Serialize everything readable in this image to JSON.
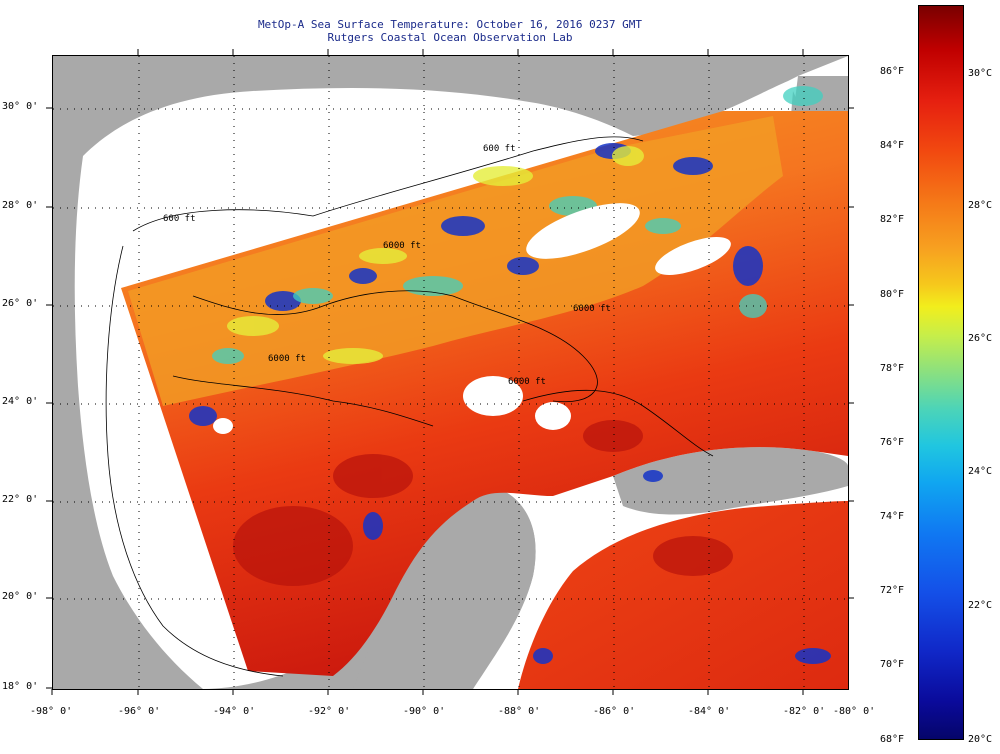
{
  "title_line1": "MetOp-A Sea Surface Temperature:  October 16, 2016 0237 GMT",
  "title_line2": "Rutgers Coastal Ocean Observation Lab",
  "lon_labels": [
    "-98° 0'",
    "-96° 0'",
    "-94° 0'",
    "-92° 0'",
    "-90° 0'",
    "-88° 0'",
    "-86° 0'",
    "-84° 0'",
    "-82° 0'",
    "-80° 0'"
  ],
  "lat_labels": [
    "30° 0'",
    "28° 0'",
    "26° 0'",
    "24° 0'",
    "22° 0'",
    "20° 0'",
    "18° 0'"
  ],
  "contour_labels": [
    "600 ft",
    "600 ft",
    "6000 ft",
    "6000 ft",
    "6000 ft",
    "6000 ft"
  ],
  "colorbar": {
    "f_labels": [
      "86°F",
      "84°F",
      "82°F",
      "80°F",
      "78°F",
      "76°F",
      "74°F",
      "72°F",
      "70°F",
      "68°F"
    ],
    "c_labels": [
      "30°C",
      "28°C",
      "26°C",
      "24°C",
      "22°C",
      "20°C"
    ]
  },
  "colors": {
    "land": "#a9a9a9",
    "ocean_nodata": "#ffffff",
    "title": "#1a2a8a"
  }
}
